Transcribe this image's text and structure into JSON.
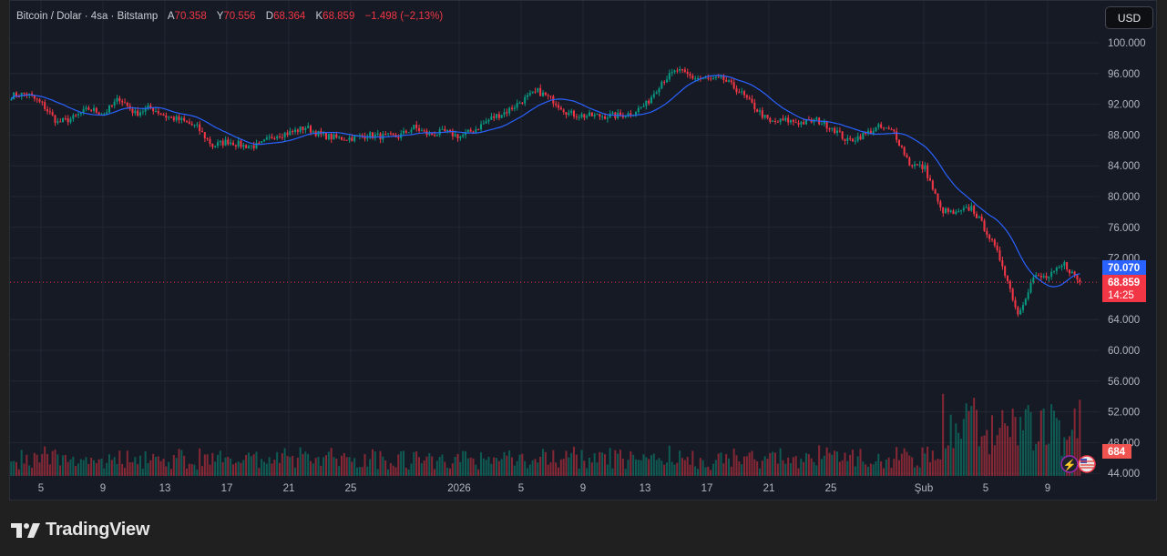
{
  "legend": {
    "symbol": "Bitcoin / Dolar · 4sa · Bitstamp",
    "open_label": "A",
    "open": "70.358",
    "high_label": "Y",
    "high": "70.556",
    "low_label": "D",
    "low": "68.364",
    "close_label": "K",
    "close": "68.859",
    "change": "−1.498 (−2,13%)"
  },
  "currency_button": "USD",
  "brand": "TradingView",
  "colors": {
    "up": "#089981",
    "down": "#f23645",
    "ma": "#2962ff",
    "bg": "#161a25"
  },
  "chart_data": {
    "type": "candlestick",
    "title": "Bitcoin / Dolar · 4sa · Bitstamp",
    "candles_per_day": 6,
    "ylim": [
      44000,
      101000
    ],
    "y_ticks": [
      "100.000",
      "96.000",
      "92.000",
      "88.000",
      "84.000",
      "80.000",
      "76.000",
      "72.000",
      "64.000",
      "60.000",
      "56.000",
      "52.000",
      "48.000",
      "44.000"
    ],
    "y_tick_values": [
      100000,
      96000,
      92000,
      88000,
      84000,
      80000,
      76000,
      72000,
      64000,
      60000,
      56000,
      52000,
      48000,
      44000
    ],
    "x_ticks": [
      {
        "label": "5",
        "day": 2
      },
      {
        "label": "9",
        "day": 6
      },
      {
        "label": "13",
        "day": 10
      },
      {
        "label": "17",
        "day": 14
      },
      {
        "label": "21",
        "day": 18
      },
      {
        "label": "25",
        "day": 22
      },
      {
        "label": "2026",
        "day": 29
      },
      {
        "label": "5",
        "day": 33
      },
      {
        "label": "9",
        "day": 37
      },
      {
        "label": "13",
        "day": 41
      },
      {
        "label": "17",
        "day": 45
      },
      {
        "label": "21",
        "day": 49
      },
      {
        "label": "25",
        "day": 53
      },
      {
        "label": "Şub",
        "day": 59
      },
      {
        "label": "5",
        "day": 63
      },
      {
        "label": "9",
        "day": 67
      }
    ],
    "daily_close_approx": [
      93100,
      93400,
      92000,
      89600,
      90200,
      91400,
      90800,
      92800,
      90800,
      91600,
      90400,
      89900,
      89000,
      86600,
      87200,
      86600,
      86600,
      88000,
      88300,
      89000,
      88000,
      87600,
      87600,
      88000,
      87800,
      87800,
      89000,
      88000,
      88400,
      87800,
      88800,
      90200,
      91100,
      92500,
      93700,
      92500,
      90800,
      90500,
      90500,
      90500,
      90800,
      92000,
      95000,
      96400,
      95500,
      95200,
      95200,
      93700,
      91600,
      89600,
      89900,
      89600,
      89900,
      89000,
      87200,
      88000,
      89000,
      88400,
      84300,
      83700,
      78300,
      77700,
      78600,
      75400,
      71200,
      64700,
      69500,
      69500,
      71200,
      68859
    ],
    "ma_label": "70.070",
    "last_price_label": "68.859",
    "countdown": "14:25",
    "volume_label": "684"
  }
}
